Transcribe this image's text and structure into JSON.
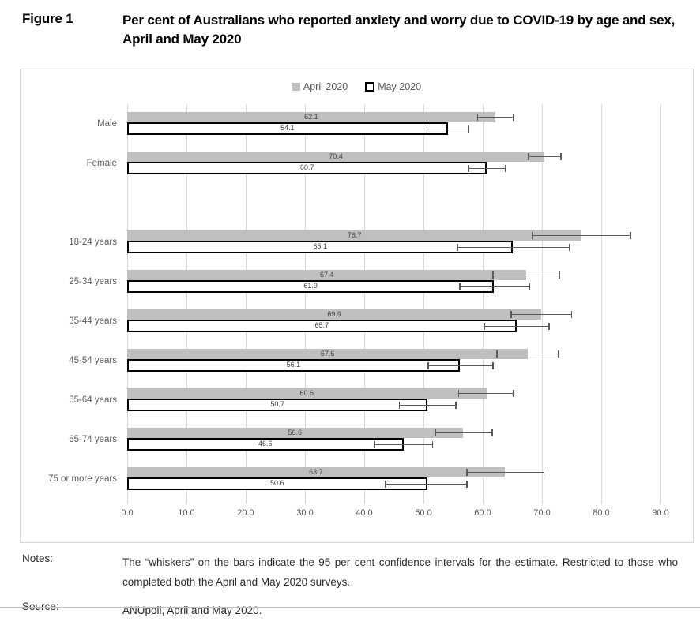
{
  "figure": {
    "label": "Figure 1",
    "title": "Per cent of Australians who reported anxiety and worry due to COVID-19 by age and sex, April and May 2020"
  },
  "legend": [
    {
      "name": "April 2020",
      "swatch_style": "gray-filled-square",
      "color": "#BFBFBF"
    },
    {
      "name": "May 2020",
      "swatch_style": "white-square-black-outline",
      "color": "#000000"
    }
  ],
  "chart_data": {
    "type": "bar",
    "orientation": "horizontal",
    "title": "Per cent of Australians who reported anxiety and worry due to COVID-19 by age and sex, April and May 2020",
    "series_names": [
      "April 2020",
      "May 2020"
    ],
    "error_bars": "95 per cent confidence intervals",
    "x_axis": {
      "min": 0,
      "max": 90,
      "tick_step": 10,
      "tick_labels": [
        "0.0",
        "10.0",
        "20.0",
        "30.0",
        "40.0",
        "50.0",
        "60.0",
        "70.0",
        "80.0",
        "90.0"
      ]
    },
    "grid": true,
    "legend_position": "top-center",
    "groups": [
      {
        "name": "sex",
        "rows": [
          {
            "label": "Male",
            "april": {
              "value": 62.1,
              "ci_low": 59.0,
              "ci_high": 65.3
            },
            "may": {
              "value": 54.1,
              "ci_low": 50.5,
              "ci_high": 57.6
            }
          },
          {
            "label": "Female",
            "april": {
              "value": 70.4,
              "ci_low": 67.6,
              "ci_high": 73.3
            },
            "may": {
              "value": 60.7,
              "ci_low": 57.5,
              "ci_high": 63.9
            }
          }
        ]
      },
      {
        "name": "age",
        "rows": [
          {
            "label": "18-24 years",
            "april": {
              "value": 76.7,
              "ci_low": 68.2,
              "ci_high": 85.0
            },
            "may": {
              "value": 65.1,
              "ci_low": 55.6,
              "ci_high": 74.7
            }
          },
          {
            "label": "25-34 years",
            "april": {
              "value": 67.4,
              "ci_low": 61.6,
              "ci_high": 73.1
            },
            "may": {
              "value": 61.9,
              "ci_low": 56.0,
              "ci_high": 68.0
            }
          },
          {
            "label": "35-44 years",
            "april": {
              "value": 69.9,
              "ci_low": 64.7,
              "ci_high": 75.1
            },
            "may": {
              "value": 65.7,
              "ci_low": 60.2,
              "ci_high": 71.3
            }
          },
          {
            "label": "45-54 years",
            "april": {
              "value": 67.6,
              "ci_low": 62.3,
              "ci_high": 72.8
            },
            "may": {
              "value": 56.1,
              "ci_low": 50.7,
              "ci_high": 61.8
            }
          },
          {
            "label": "55-64 years",
            "april": {
              "value": 60.6,
              "ci_low": 55.8,
              "ci_high": 65.3
            },
            "may": {
              "value": 50.7,
              "ci_low": 45.8,
              "ci_high": 55.6
            }
          },
          {
            "label": "65-74 years",
            "april": {
              "value": 56.6,
              "ci_low": 51.9,
              "ci_high": 61.7
            },
            "may": {
              "value": 46.6,
              "ci_low": 41.7,
              "ci_high": 51.6
            }
          },
          {
            "label": "75 or more years",
            "april": {
              "value": 63.7,
              "ci_low": 57.2,
              "ci_high": 70.4
            },
            "may": {
              "value": 50.6,
              "ci_low": 43.5,
              "ci_high": 57.4
            }
          }
        ]
      }
    ]
  },
  "colors": {
    "april_bar_fill": "#BFBFBF",
    "may_bar_border": "#000000",
    "whisker": "#595959",
    "gridline": "#D9D9D9",
    "axis_text": "#595959",
    "value_label": "#404040"
  },
  "notes": {
    "label": "Notes:",
    "text": "The “whiskers” on the bars indicate the 95 per cent confidence intervals for the estimate. Restricted to those who completed both the April and May 2020 surveys."
  },
  "source": {
    "label": "Source:",
    "text": "ANUpoll, April and May 2020."
  }
}
